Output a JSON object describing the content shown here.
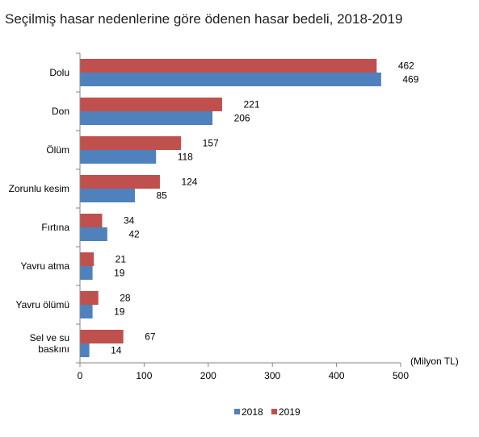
{
  "chart_data": {
    "type": "bar",
    "orientation": "horizontal",
    "title": "Seçilmiş hasar nedenlerine göre ödenen hasar bedeli, 2018-2019",
    "unit_label": "(Milyon TL)",
    "categories": [
      [
        "Dolu"
      ],
      [
        "Don"
      ],
      [
        "Ölüm"
      ],
      [
        "Zorunlu kesim"
      ],
      [
        "Fırtına"
      ],
      [
        "Yavru atma"
      ],
      [
        "Yavru ölümü"
      ],
      [
        "Sel ve su",
        "baskını"
      ]
    ],
    "series": [
      {
        "name": "2019",
        "color": "#C0504D",
        "values": [
          462,
          221,
          157,
          124,
          34,
          21,
          28,
          67
        ]
      },
      {
        "name": "2018",
        "color": "#4F81BD",
        "values": [
          469,
          206,
          118,
          85,
          42,
          19,
          19,
          14
        ]
      }
    ],
    "xlim": [
      0,
      500
    ],
    "xticks": [
      0,
      100,
      200,
      300,
      400,
      500
    ],
    "grid": false,
    "legend_position": "bottom",
    "legend": [
      {
        "name": "2018",
        "color": "#4F81BD"
      },
      {
        "name": "2019",
        "color": "#C0504D"
      }
    ]
  }
}
